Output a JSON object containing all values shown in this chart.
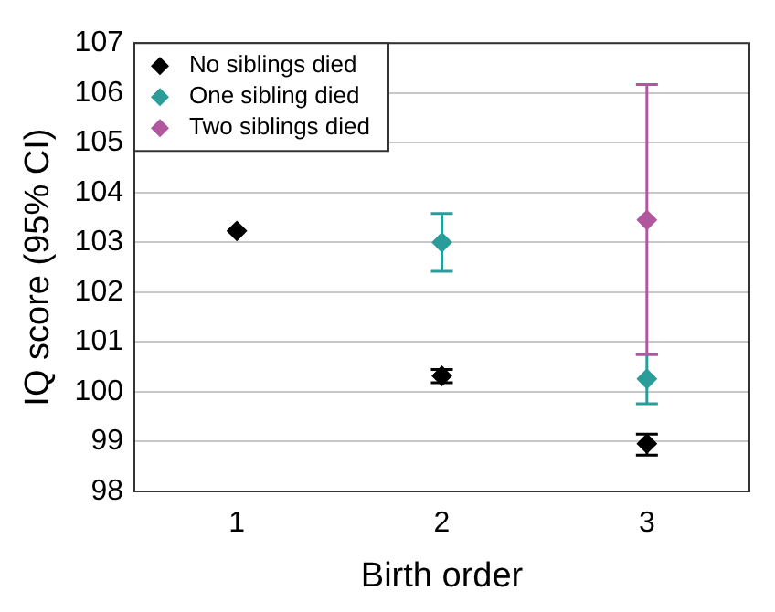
{
  "chart_data": {
    "type": "scatter",
    "xlabel": "Birth order",
    "ylabel": "IQ score (95% CI)",
    "categories": [
      "1",
      "2",
      "3"
    ],
    "ylim": [
      98,
      107
    ],
    "yticks": [
      98,
      99,
      100,
      101,
      102,
      103,
      104,
      105,
      106,
      107
    ],
    "grid": "y",
    "legend": "top left",
    "marker": "diamond",
    "series": [
      {
        "name": "No siblings died",
        "color": "#000000",
        "x": [
          "1",
          "2",
          "3"
        ],
        "values": [
          103.23,
          100.32,
          98.96
        ],
        "errors": [
          null,
          [
            100.18,
            100.45
          ],
          [
            98.73,
            99.15
          ]
        ]
      },
      {
        "name": "One sibling died",
        "color": "#2a9d9a",
        "x": [
          "2",
          "3"
        ],
        "values": [
          103.0,
          100.26
        ],
        "errors": [
          [
            102.42,
            103.58
          ],
          [
            99.76,
            100.75
          ]
        ]
      },
      {
        "name": "Two siblings died",
        "color": "#b0579e",
        "x": [
          "3"
        ],
        "values": [
          103.45
        ],
        "errors": [
          [
            100.75,
            106.17
          ]
        ]
      }
    ]
  }
}
